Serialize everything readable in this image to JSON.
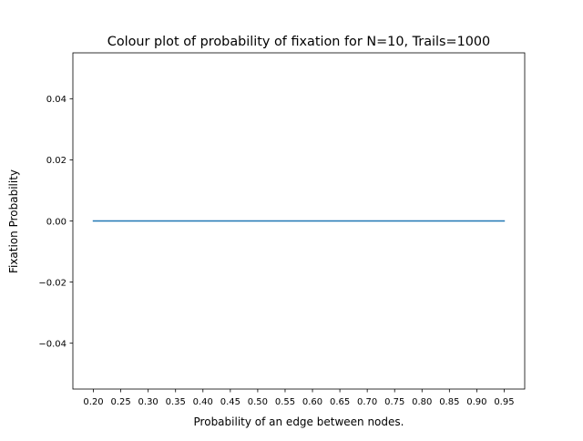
{
  "chart_data": {
    "type": "line",
    "title": "Colour plot of probability of fixation for N=10, Trails=1000",
    "xlabel": "Probability of an edge between nodes.",
    "ylabel": "Fixation Probability",
    "x": [
      0.2,
      0.25,
      0.3,
      0.35,
      0.4,
      0.45,
      0.5,
      0.55,
      0.6,
      0.65,
      0.7,
      0.75,
      0.8,
      0.85,
      0.9,
      0.95
    ],
    "xtick_labels": [
      "0.20",
      "0.25",
      "0.30",
      "0.35",
      "0.40",
      "0.45",
      "0.50",
      "0.55",
      "0.60",
      "0.65",
      "0.70",
      "0.75",
      "0.80",
      "0.85",
      "0.90",
      "0.95"
    ],
    "series": [
      {
        "values": [
          0,
          0,
          0,
          0,
          0,
          0,
          0,
          0,
          0,
          0,
          0,
          0,
          0,
          0,
          0,
          0
        ],
        "color": "#1f77b4"
      }
    ],
    "xlim": [
      0.1625,
      0.9875
    ],
    "ylim": [
      -0.055,
      0.055
    ],
    "yticks": [
      -0.04,
      -0.02,
      0.0,
      0.02,
      0.04
    ],
    "ytick_labels": [
      "−0.04",
      "−0.02",
      "0.00",
      "0.02",
      "0.04"
    ],
    "grid": false,
    "legend": "none"
  }
}
